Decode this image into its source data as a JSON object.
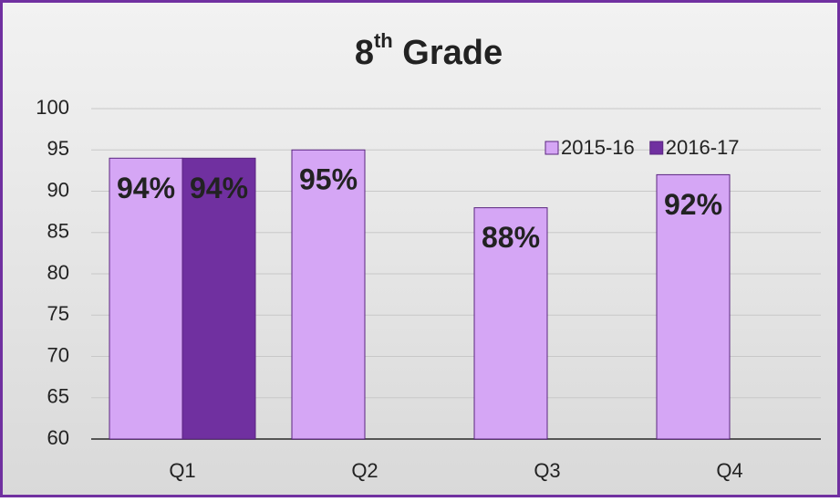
{
  "chart_data": {
    "type": "bar",
    "title": {
      "base": "8",
      "sup": "th",
      "rest": " Grade"
    },
    "categories": [
      "Q1",
      "Q2",
      "Q3",
      "Q4"
    ],
    "series": [
      {
        "name": "2015-16",
        "color": "#d5a6f5",
        "values": [
          94,
          95,
          88,
          92
        ],
        "value_labels": [
          "94%",
          "95%",
          "88%",
          "92%"
        ]
      },
      {
        "name": "2016-17",
        "color": "#7030a0",
        "values": [
          94,
          null,
          null,
          null
        ],
        "value_labels": [
          "94%",
          null,
          null,
          null
        ]
      }
    ],
    "ylim": [
      60,
      100
    ],
    "yticks": [
      60,
      65,
      70,
      75,
      80,
      85,
      90,
      95,
      100
    ],
    "grid": true,
    "legend": "top-right"
  }
}
